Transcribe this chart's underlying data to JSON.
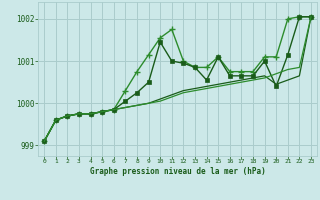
{
  "title": "Graphe pression niveau de la mer (hPa)",
  "bg_color": "#cce8e8",
  "grid_color": "#aacccc",
  "line_color_dark": "#1a5c1a",
  "line_color_mid": "#2d8c2d",
  "xlim": [
    -0.5,
    23.5
  ],
  "ylim": [
    998.75,
    1002.4
  ],
  "yticks": [
    999,
    1000,
    1001,
    1002
  ],
  "xticks": [
    0,
    1,
    2,
    3,
    4,
    5,
    6,
    7,
    8,
    9,
    10,
    11,
    12,
    13,
    14,
    15,
    16,
    17,
    18,
    19,
    20,
    21,
    22,
    23
  ],
  "series": [
    {
      "x": [
        0,
        1,
        2,
        3,
        4,
        5,
        6,
        7,
        8,
        9,
        10,
        11,
        12,
        13,
        14,
        15,
        16,
        17,
        18,
        19,
        20,
        21,
        22,
        23
      ],
      "y": [
        999.1,
        999.6,
        999.7,
        999.75,
        999.75,
        999.8,
        999.85,
        1000.3,
        1000.75,
        1001.15,
        1001.55,
        1001.75,
        1001.0,
        1000.85,
        1000.85,
        1001.1,
        1000.75,
        1000.75,
        1000.75,
        1001.1,
        1001.1,
        1002.0,
        1002.05,
        1002.05
      ],
      "color": "#2d8c2d",
      "lw": 1.0,
      "marker": "+",
      "ms": 4,
      "mew": 1.0
    },
    {
      "x": [
        0,
        1,
        2,
        3,
        4,
        5,
        6,
        7,
        8,
        9,
        10,
        11,
        12,
        13,
        14,
        15,
        16,
        17,
        18,
        19,
        20,
        21,
        22,
        23
      ],
      "y": [
        999.1,
        999.6,
        999.7,
        999.75,
        999.75,
        999.8,
        999.85,
        1000.05,
        1000.25,
        1000.5,
        1001.45,
        1001.0,
        1000.95,
        1000.85,
        1000.55,
        1001.1,
        1000.65,
        1000.65,
        1000.65,
        1001.0,
        1000.4,
        1001.15,
        1002.05,
        1002.05
      ],
      "color": "#1a5c1a",
      "lw": 1.0,
      "marker": "s",
      "ms": 2.5,
      "mew": 0.5
    },
    {
      "x": [
        0,
        1,
        2,
        3,
        4,
        5,
        6,
        7,
        8,
        9,
        10,
        11,
        12,
        13,
        14,
        15,
        16,
        17,
        18,
        19,
        20,
        21,
        22,
        23
      ],
      "y": [
        999.1,
        999.6,
        999.7,
        999.75,
        999.75,
        999.8,
        999.85,
        999.9,
        999.95,
        1000.0,
        1000.1,
        1000.2,
        1000.3,
        1000.35,
        1000.4,
        1000.45,
        1000.5,
        1000.55,
        1000.6,
        1000.65,
        1000.45,
        1000.55,
        1000.65,
        1002.05
      ],
      "color": "#1a5c1a",
      "lw": 0.9,
      "marker": null,
      "ms": 0,
      "mew": 0
    },
    {
      "x": [
        0,
        1,
        2,
        3,
        4,
        5,
        6,
        7,
        8,
        9,
        10,
        11,
        12,
        13,
        14,
        15,
        16,
        17,
        18,
        19,
        20,
        21,
        22,
        23
      ],
      "y": [
        999.1,
        999.6,
        999.7,
        999.75,
        999.75,
        999.8,
        999.85,
        999.9,
        999.95,
        1000.0,
        1000.05,
        1000.15,
        1000.25,
        1000.3,
        1000.35,
        1000.4,
        1000.45,
        1000.5,
        1000.55,
        1000.6,
        1000.7,
        1000.8,
        1000.85,
        1002.05
      ],
      "color": "#2d8c2d",
      "lw": 0.9,
      "marker": null,
      "ms": 0,
      "mew": 0
    }
  ]
}
